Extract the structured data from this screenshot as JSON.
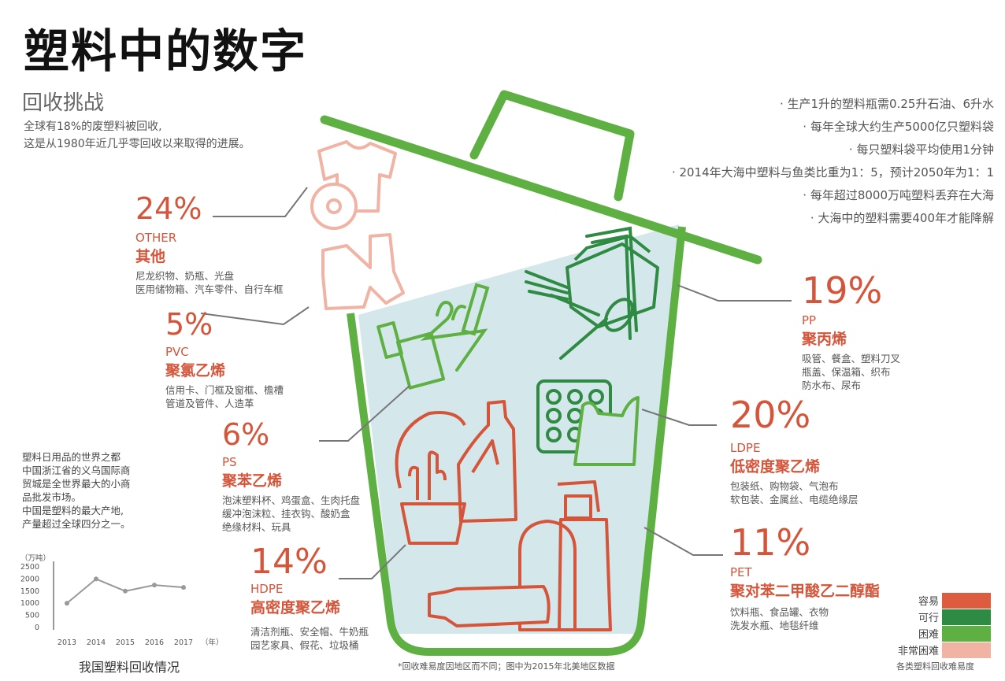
{
  "title": "塑料中的数字",
  "subtitle": "回收挑战",
  "intro": [
    "全球有18%的废塑料被回收,",
    "这是从1980年近几乎零回收以来取得的进展。"
  ],
  "facts": [
    "· 生产1升的塑料瓶需0.25升石油、6升水",
    "· 每年全球大约生产5000亿只塑料袋",
    "· 每只塑料袋平均使用1分钟",
    "· 2014年大海中塑料与鱼类比重为1：5，预计2050年为1：1",
    "· 每年超过8000万吨塑料丢弃在大海",
    "· 大海中的塑料需要400年才能降解"
  ],
  "categories": {
    "other": {
      "pct": "24%",
      "code": "OTHER",
      "name": "其他",
      "desc": [
        "尼龙织物、奶瓶、光盘",
        "医用储物箱、汽车零件、自行车框"
      ]
    },
    "pvc": {
      "pct": "5%",
      "code": "PVC",
      "name": "聚氯乙烯",
      "desc": [
        "信用卡、门框及窗框、檐槽",
        "管道及管件、人造革"
      ]
    },
    "ps": {
      "pct": "6%",
      "code": "PS",
      "name": "聚苯乙烯",
      "desc": [
        "泡沫塑料杯、鸡蛋盒、生肉托盘",
        "缓冲泡沫粒、挂衣钩、酸奶盒",
        "绝缘材料、玩具"
      ]
    },
    "hdpe": {
      "pct": "14%",
      "code": "HDPE",
      "name": "高密度聚乙烯",
      "desc": [
        "清洁剂瓶、安全帽、牛奶瓶",
        "园艺家具、假花、垃圾桶"
      ]
    },
    "pp": {
      "pct": "19%",
      "code": "PP",
      "name": "聚丙烯",
      "desc": [
        "吸管、餐盒、塑料刀叉",
        "瓶盖、保温箱、织布",
        "防水布、尿布"
      ]
    },
    "ldpe": {
      "pct": "20%",
      "code": "LDPE",
      "name": "低密度聚乙烯",
      "desc": [
        "包装纸、购物袋、气泡布",
        "软包装、金属丝、电缆绝缘层"
      ]
    },
    "pet": {
      "pct": "11%",
      "code": "PET",
      "name": "聚对苯二甲酸乙二醇酯",
      "desc": [
        "饮料瓶、食品罐、衣物",
        "洗发水瓶、地毯纤维"
      ]
    }
  },
  "side_note": [
    "塑料日用品的世界之都",
    "中国浙江省的义乌国际商",
    "贸城是全世界最大的小商",
    "品批发市场。",
    "中国是塑料的最大产地,",
    "产量超过全球四分之一。"
  ],
  "chart_data": {
    "type": "line",
    "title": "我国塑料回收情况",
    "ylabel": "（万吨）",
    "xlabel": "（年）",
    "x": [
      "2013",
      "2014",
      "2015",
      "2016",
      "2017"
    ],
    "series": [
      {
        "values": [
          1000,
          2000,
          1500,
          1750,
          1650
        ]
      }
    ],
    "yticks": [
      0,
      500,
      1000,
      1500,
      2000,
      2500
    ],
    "ylim": [
      0,
      2500
    ]
  },
  "footnote": "*回收难易度因地区而不同；图中为2015年北美地区数据",
  "legend": {
    "caption": "各类塑料回收难易度",
    "items": [
      {
        "label": "容易",
        "color": "#dd5b3f"
      },
      {
        "label": "可行",
        "color": "#2f8a43"
      },
      {
        "label": "困难",
        "color": "#5fb043"
      },
      {
        "label": "非常困难",
        "color": "#f0b3a4"
      }
    ]
  },
  "colors": {
    "accent_red": "#d4553a",
    "bin_green": "#5fb043",
    "dark_green": "#2f8a43",
    "pink": "#f0b3a4",
    "water": "#d4e7ea"
  },
  "icons": [
    "trash-bin",
    "tshirt",
    "cd-disc",
    "bandage-strip",
    "clothes-hanger",
    "toothbrush",
    "cutlery",
    "food-box",
    "straw",
    "egg-carton",
    "plastic-bag",
    "bucket",
    "potted-cactus",
    "detergent-bottle",
    "pump-bottle",
    "jar",
    "water-bottle"
  ]
}
